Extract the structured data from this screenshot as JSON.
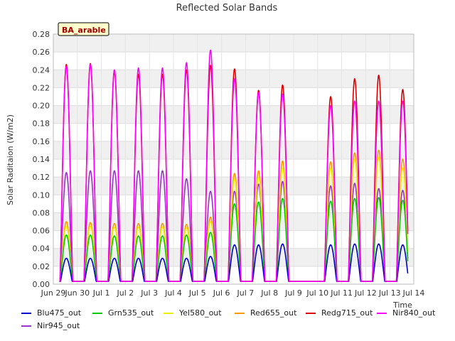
{
  "chart_data": {
    "type": "line",
    "title": "Reflected Solar Bands",
    "ylabel": "Solar Raditaion (W/m2)",
    "xlabel": "Time",
    "badge": "BA_arable",
    "ylim": [
      0,
      0.28
    ],
    "yticks": [
      "0.00",
      "0.02",
      "0.04",
      "0.06",
      "0.08",
      "0.10",
      "0.12",
      "0.14",
      "0.16",
      "0.18",
      "0.20",
      "0.22",
      "0.24",
      "0.26",
      "0.28"
    ],
    "xlim": [
      "2024-06-29",
      "2024-07-14"
    ],
    "xticks": [
      "Jun 29",
      "Jun 30",
      "Jul 1",
      "Jul 2",
      "Jul 3",
      "Jul 4",
      "Jul 5",
      "Jul 6",
      "Jul 7",
      "Jul 8",
      "Jul 9",
      "Jul 10",
      "Jul 11",
      "Jul 12",
      "Jul 13",
      "Jul 14"
    ],
    "day_dates": [
      "2024-06-29",
      "2024-06-30",
      "2024-07-01",
      "2024-07-02",
      "2024-07-03",
      "2024-07-04",
      "2024-07-05",
      "2024-07-06",
      "2024-07-07",
      "2024-07-08",
      "2024-07-09",
      "2024-07-10",
      "2024-07-11",
      "2024-07-12",
      "2024-07-13",
      "2024-07-14"
    ],
    "data_start": "2024-06-29T06:00",
    "data_end": "2024-07-13T18:00",
    "night_value": 0.003,
    "daily_peak_dates": [
      "2024-06-29",
      "2024-06-30",
      "2024-07-01",
      "2024-07-02",
      "2024-07-03",
      "2024-07-04",
      "2024-07-05",
      "2024-07-06",
      "2024-07-07",
      "2024-07-08",
      "2024-07-10",
      "2024-07-11",
      "2024-07-12",
      "2024-07-13"
    ],
    "grid": true,
    "legend_position": "bottom",
    "series": [
      {
        "name": "Blu475_out",
        "color": "#0000cc",
        "peaks": [
          0.029,
          0.029,
          0.029,
          0.029,
          0.029,
          0.029,
          0.031,
          0.044,
          0.044,
          0.045,
          0.044,
          0.045,
          0.045,
          0.044
        ]
      },
      {
        "name": "Grn535_out",
        "color": "#00cc00",
        "peaks": [
          0.055,
          0.055,
          0.054,
          0.054,
          0.054,
          0.055,
          0.058,
          0.09,
          0.092,
          0.096,
          0.093,
          0.096,
          0.097,
          0.094
        ]
      },
      {
        "name": "Yel580_out",
        "color": "#eeee00",
        "peaks": [
          0.065,
          0.065,
          0.064,
          0.064,
          0.064,
          0.063,
          0.07,
          0.118,
          0.12,
          0.13,
          0.13,
          0.14,
          0.142,
          0.13
        ]
      },
      {
        "name": "Red655_out",
        "color": "#ff9900",
        "peaks": [
          0.07,
          0.069,
          0.068,
          0.068,
          0.068,
          0.067,
          0.075,
          0.124,
          0.127,
          0.138,
          0.137,
          0.147,
          0.15,
          0.14
        ]
      },
      {
        "name": "Redg715_out",
        "color": "#dd0000",
        "peaks": [
          0.246,
          0.247,
          0.238,
          0.235,
          0.235,
          0.24,
          0.245,
          0.241,
          0.217,
          0.223,
          0.21,
          0.23,
          0.234,
          0.218
        ]
      },
      {
        "name": "Nir840_out",
        "color": "#ff00ff",
        "peaks": [
          0.244,
          0.246,
          0.24,
          0.242,
          0.242,
          0.248,
          0.262,
          0.23,
          0.215,
          0.213,
          0.2,
          0.205,
          0.205,
          0.205
        ]
      },
      {
        "name": "Nir945_out",
        "color": "#9933cc",
        "peaks": [
          0.125,
          0.127,
          0.127,
          0.127,
          0.127,
          0.118,
          0.104,
          0.104,
          0.112,
          0.115,
          0.11,
          0.113,
          0.107,
          0.105
        ]
      }
    ]
  }
}
